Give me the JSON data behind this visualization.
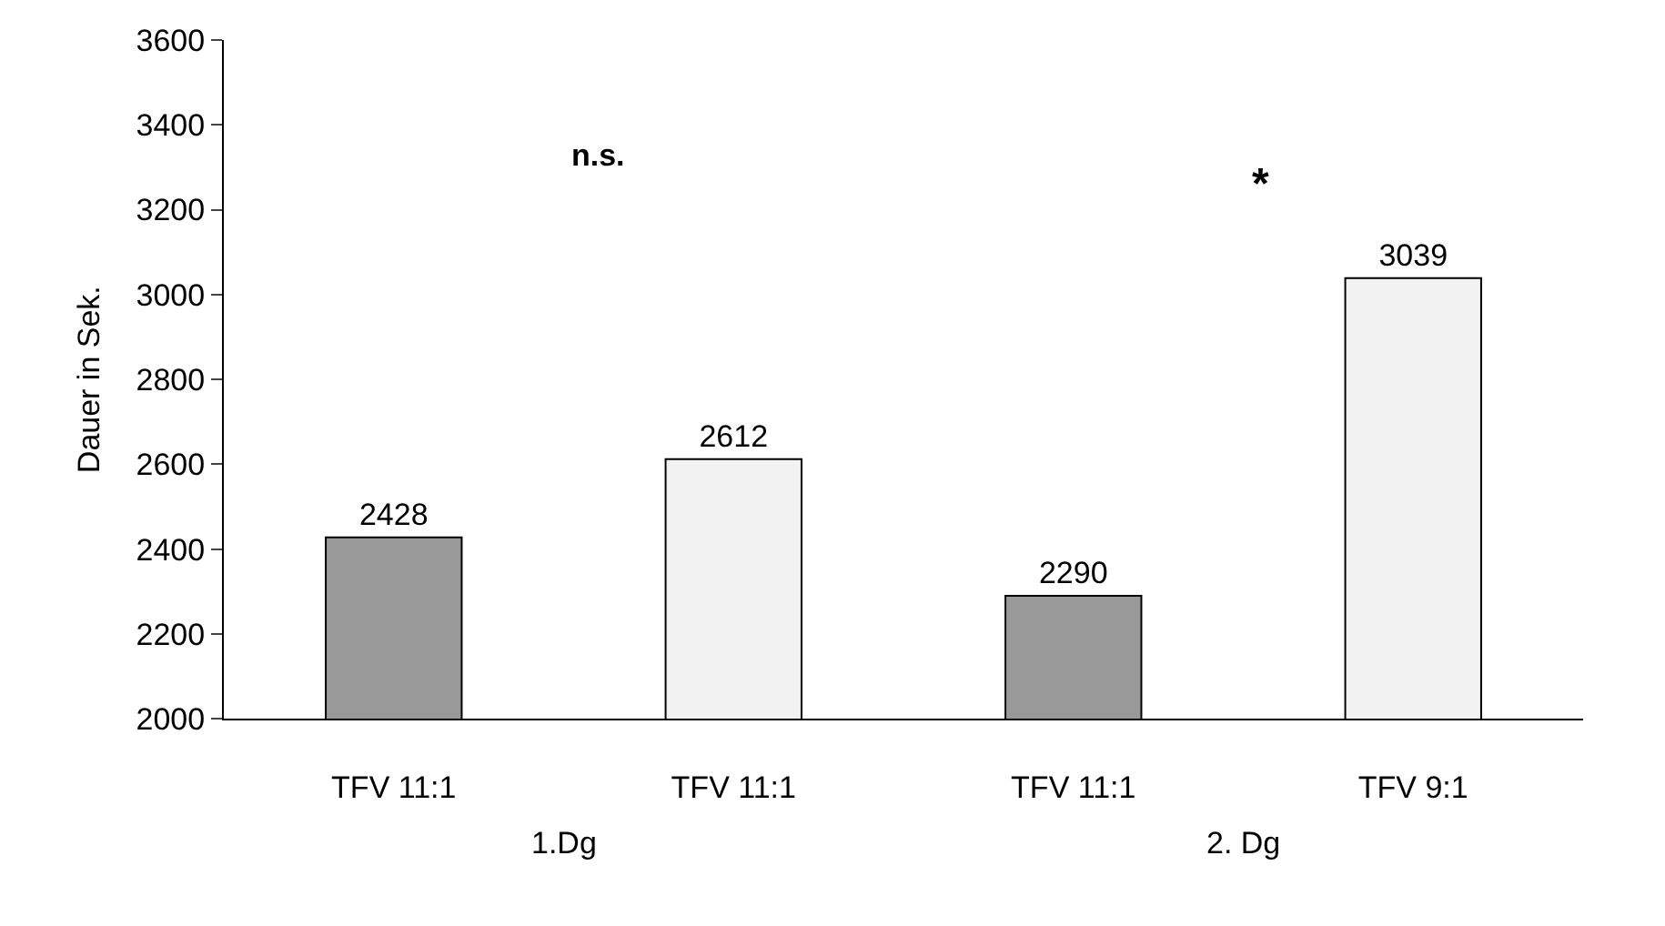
{
  "chart_data": {
    "type": "bar",
    "ylabel": "Dauer in Sek.",
    "categories": [
      "TFV 11:1",
      "TFV 11:1",
      "TFV 11:1",
      "TFV 9:1"
    ],
    "values": [
      2428,
      2612,
      2290,
      3039
    ],
    "colors": [
      "#999999",
      "#f2f2f2",
      "#999999",
      "#f2f2f2"
    ],
    "ylim": [
      2000,
      3600
    ],
    "yticks": [
      2000,
      2200,
      2400,
      2600,
      2800,
      3000,
      3200,
      3400,
      3600
    ],
    "data_labels": true,
    "annotations": [
      "n.s.",
      "*",
      "1.Dg",
      "2. Dg"
    ]
  }
}
